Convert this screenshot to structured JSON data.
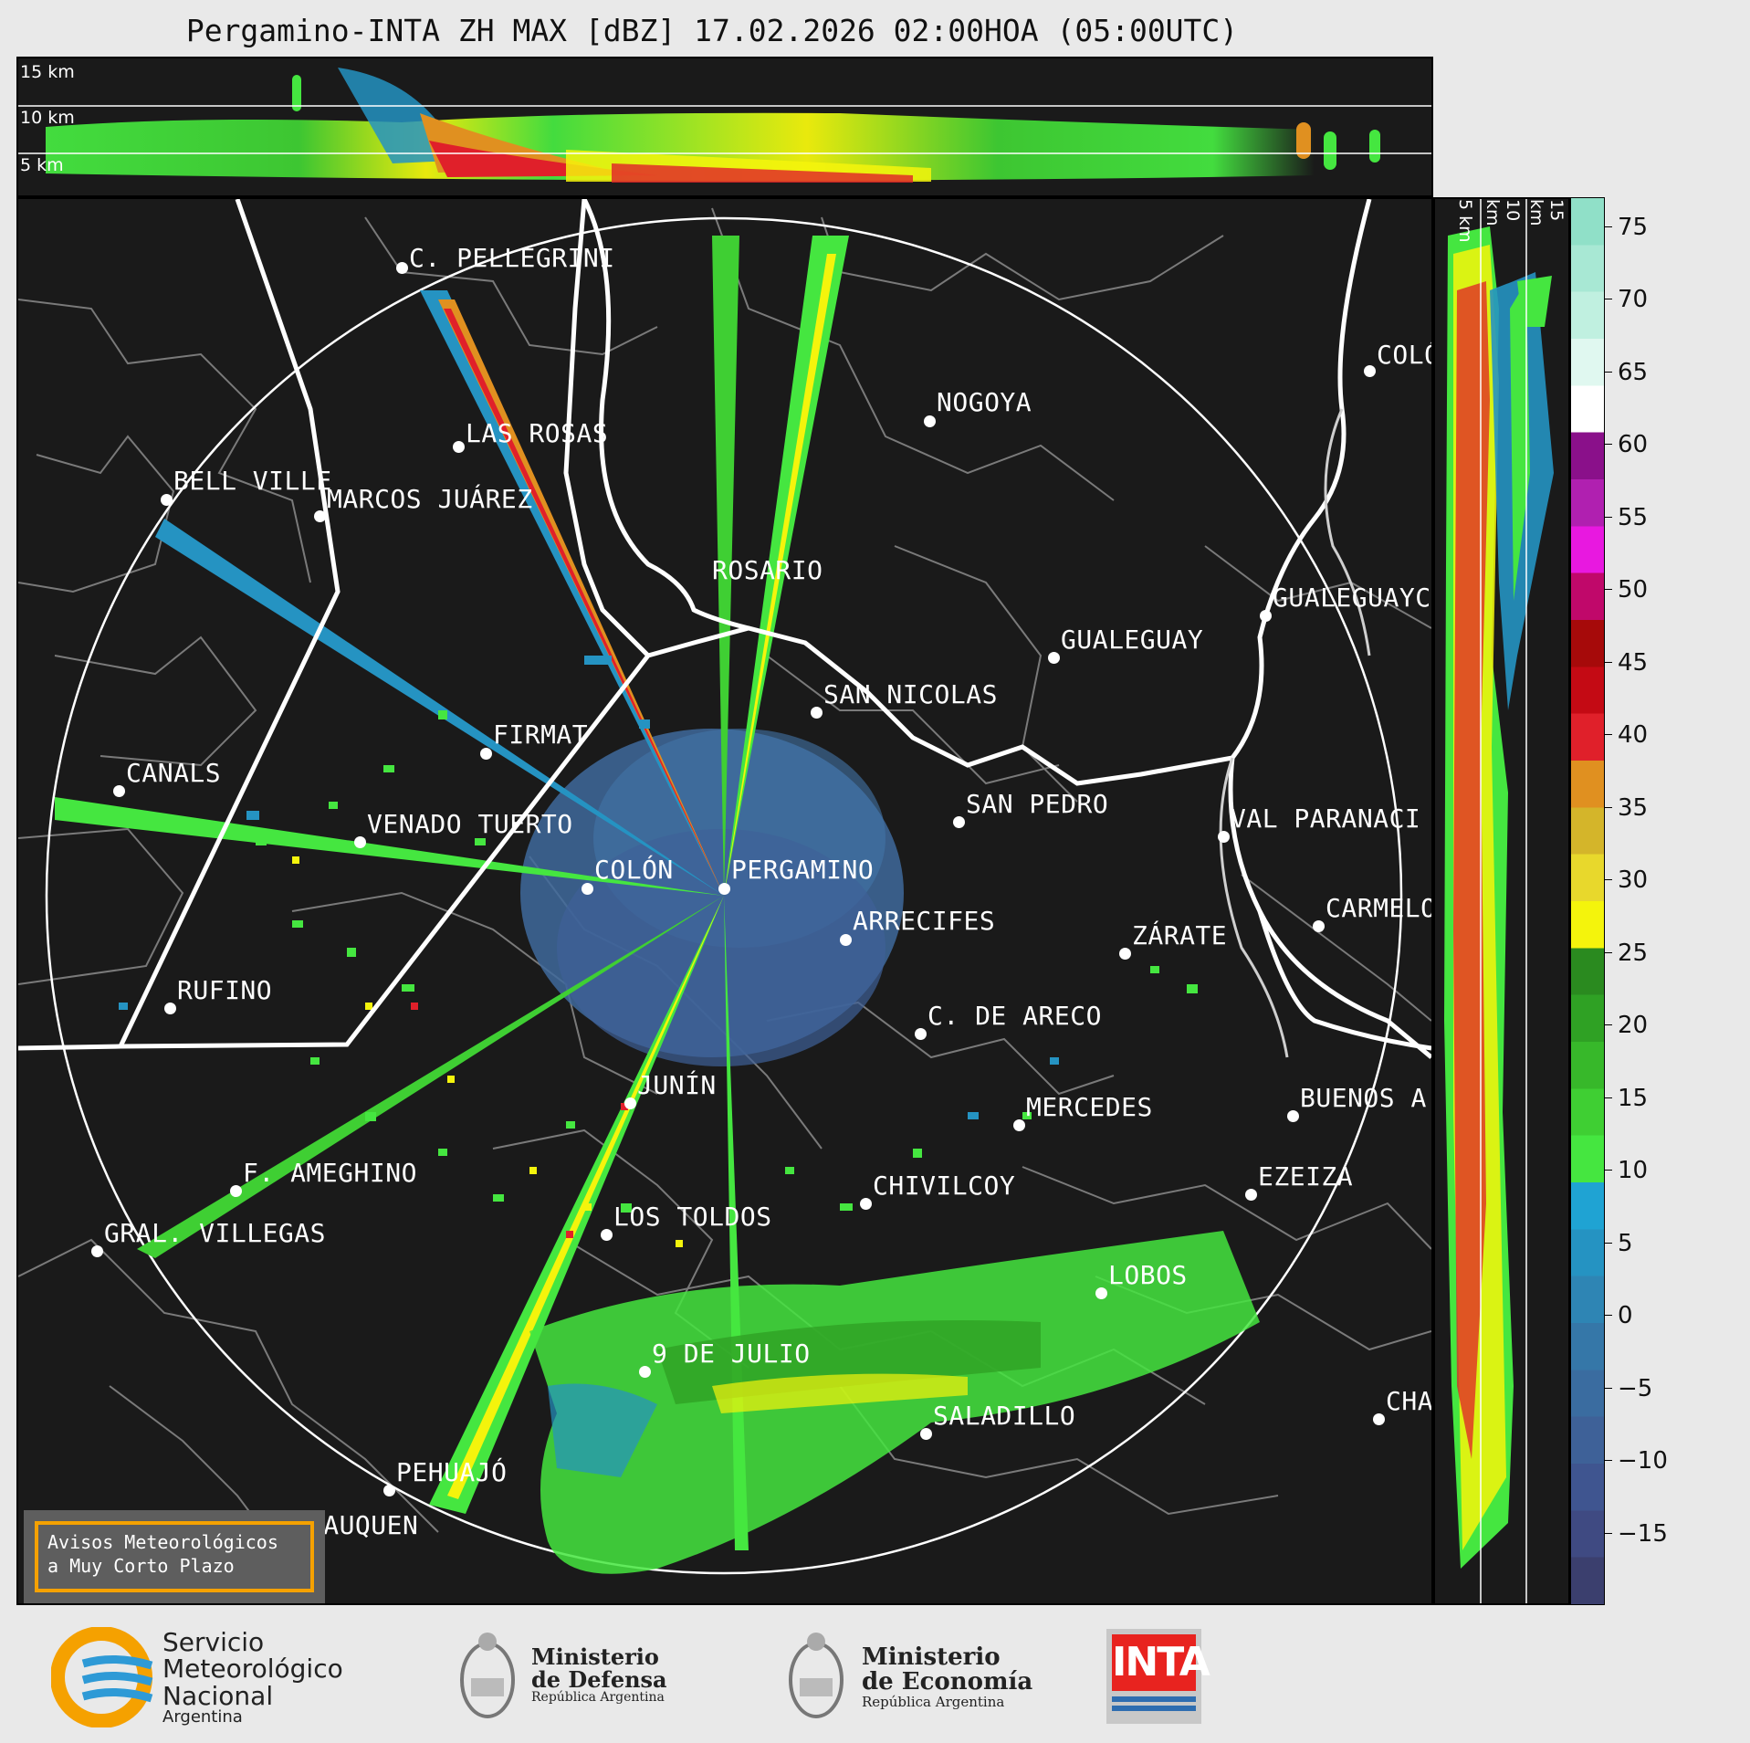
{
  "title": "Pergamino-INTA ZH MAX [dBZ] 17.02.2026 02:00HOA (05:00UTC)",
  "top_panel": {
    "km_labels": [
      "15 km",
      "10 km",
      "5 km"
    ]
  },
  "side_panel": {
    "km_labels": [
      "5 km",
      "10 km",
      "15 km"
    ]
  },
  "colorbar": {
    "ticks": [
      "75",
      "70",
      "65",
      "60",
      "55",
      "50",
      "45",
      "40",
      "35",
      "30",
      "25",
      "20",
      "15",
      "10",
      "5",
      "0",
      "−5",
      "−10",
      "−15"
    ],
    "colors": [
      "#3b3f6e",
      "#3f4a82",
      "#3f5590",
      "#3e6198",
      "#3a6ca0",
      "#3577a8",
      "#2e85b4",
      "#2593c2",
      "#1fa3d3",
      "#45e640",
      "#3fcf33",
      "#37b82a",
      "#2fa124",
      "#2a8a1f",
      "#f4f40c",
      "#e8d82c",
      "#d4b52a",
      "#e09020",
      "#e0202a",
      "#c40a14",
      "#a60a0a",
      "#c0086a",
      "#e818e0",
      "#b020b0",
      "#8a108a",
      "#ffffff",
      "#e0f8f0",
      "#c0f0e0",
      "#a8e8d4",
      "#90e0c8"
    ]
  },
  "cities": [
    {
      "name": "C. PELLEGRINI"
    },
    {
      "name": "LAS ROSAS"
    },
    {
      "name": "BELL VILLE"
    },
    {
      "name": "MARCOS JUÁREZ"
    },
    {
      "name": "NOGOYA"
    },
    {
      "name": "COLÓ"
    },
    {
      "name": "ROSARIO"
    },
    {
      "name": "GUALEGUAYC"
    },
    {
      "name": "GUALEGUAY"
    },
    {
      "name": "SAN NICOLAS"
    },
    {
      "name": "FIRMAT"
    },
    {
      "name": "CANALS"
    },
    {
      "name": "VENADO TUERTO"
    },
    {
      "name": "SAN PEDRO"
    },
    {
      "name": "VAL PARANACI"
    },
    {
      "name": "COLÓN"
    },
    {
      "name": "PERGAMINO"
    },
    {
      "name": "ARRECIFES"
    },
    {
      "name": "CARMELO"
    },
    {
      "name": "ZÁRATE"
    },
    {
      "name": "RUFINO"
    },
    {
      "name": "C. DE ARECO"
    },
    {
      "name": "JUNÍN"
    },
    {
      "name": "MERCEDES"
    },
    {
      "name": "BUENOS A"
    },
    {
      "name": "F. AMEGHINO"
    },
    {
      "name": "EZEIZA"
    },
    {
      "name": "CHIVILCOY"
    },
    {
      "name": "GRAL. VILLEGAS"
    },
    {
      "name": "LOS TOLDOS"
    },
    {
      "name": "LOBOS"
    },
    {
      "name": "9 DE JULIO"
    },
    {
      "name": "SALADILLO"
    },
    {
      "name": "CHA"
    },
    {
      "name": "PEHUAJÓ"
    },
    {
      "name": "TRENQUE LAUQUEN"
    }
  ],
  "aviso": {
    "line1": "Avisos Meteorológicos",
    "line2": "a Muy Corto Plazo"
  },
  "logos": {
    "smn": {
      "l1": "Servicio",
      "l2": "Meteorológico",
      "l3": "Nacional",
      "l4": "Argentina"
    },
    "defensa": {
      "l1": "Ministerio",
      "l2": "de Defensa",
      "l3": "República Argentina"
    },
    "economia": {
      "l1": "Ministerio",
      "l2": "de Economía",
      "l3": "República Argentina"
    },
    "inta": {
      "text": "INTA"
    }
  }
}
